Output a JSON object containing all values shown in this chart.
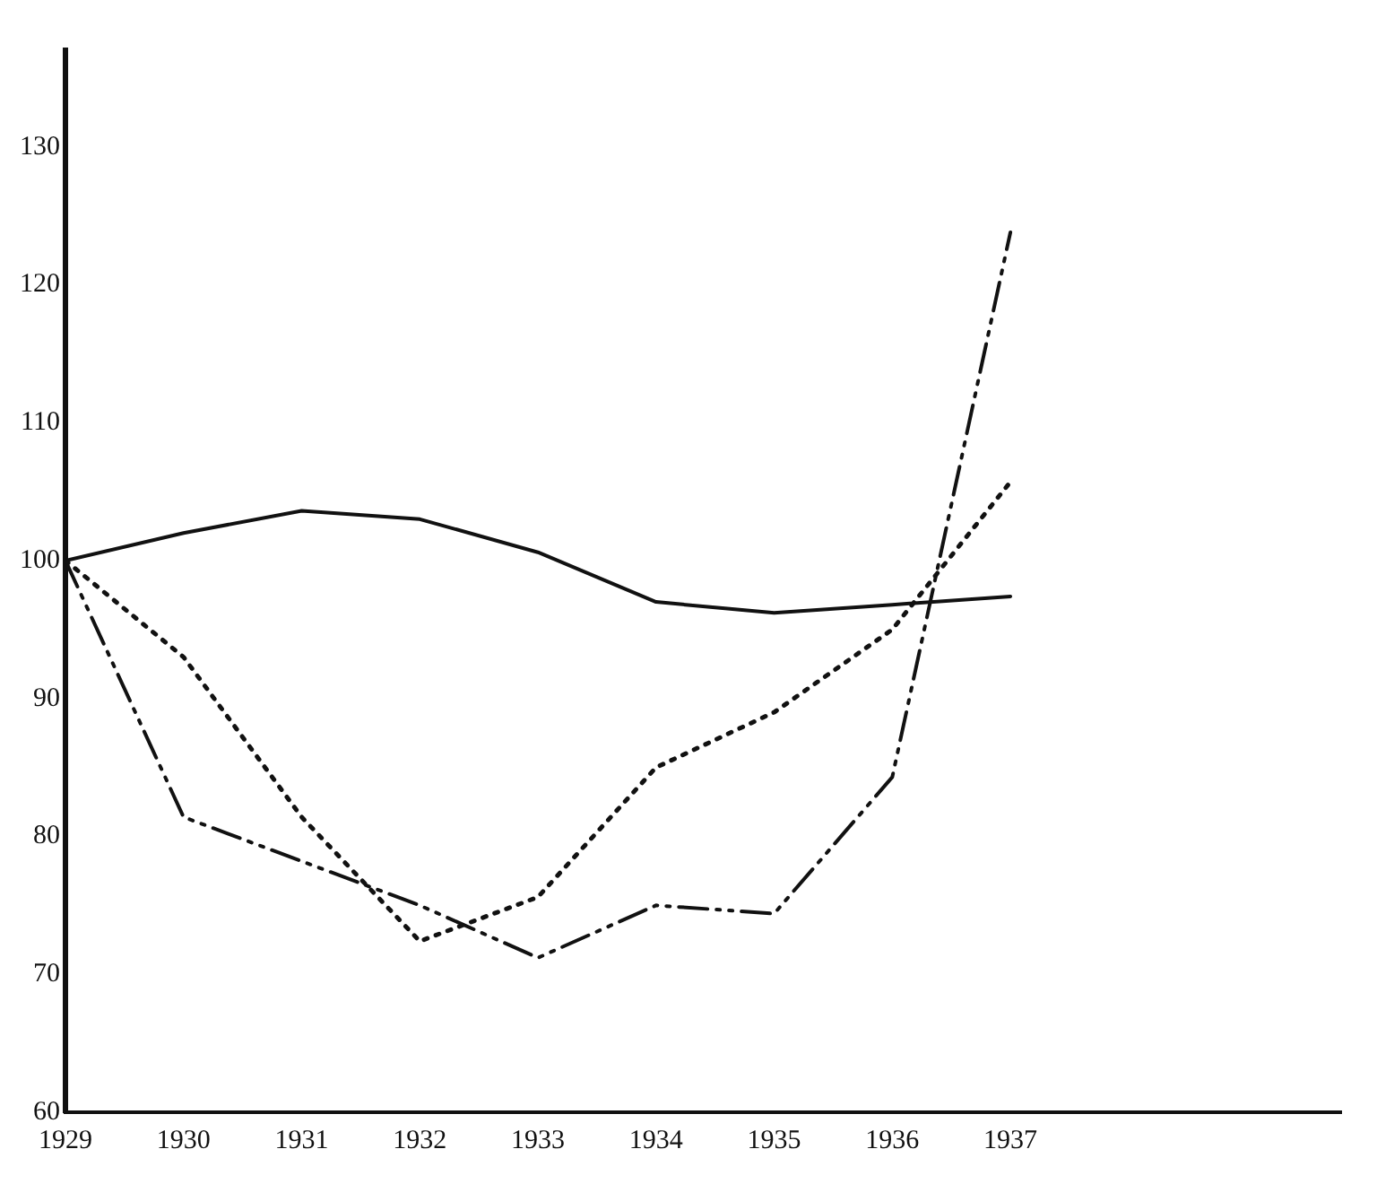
{
  "chart_data": {
    "type": "line",
    "x": [
      1929,
      1930,
      1931,
      1932,
      1933,
      1934,
      1935,
      1936,
      1937
    ],
    "series": [
      {
        "color": "#111111",
        "line_style": "solid",
        "values": [
          100,
          102,
          103.6,
          103,
          100.6,
          97,
          96.2,
          96.8,
          97.4
        ]
      },
      {
        "color": "#111111",
        "line_style": "dotted",
        "values": [
          100,
          93,
          81.4,
          72.4,
          75.6,
          85,
          89,
          95,
          105.7
        ]
      },
      {
        "color": "#111111",
        "line_style": "dashed",
        "values": [
          100,
          81.4,
          78.2,
          75,
          71.2,
          75,
          74.4,
          84.3,
          123.8
        ]
      }
    ],
    "xlim": [
      1929,
      1939.8
    ],
    "xticks": [
      1929,
      1930,
      1931,
      1932,
      1933,
      1934,
      1935,
      1936,
      1937
    ],
    "ylim": [
      60,
      137
    ],
    "yticks": [
      60,
      70,
      80,
      90,
      100,
      110,
      120,
      130
    ],
    "grid": false,
    "legend": false,
    "marker": "none"
  }
}
